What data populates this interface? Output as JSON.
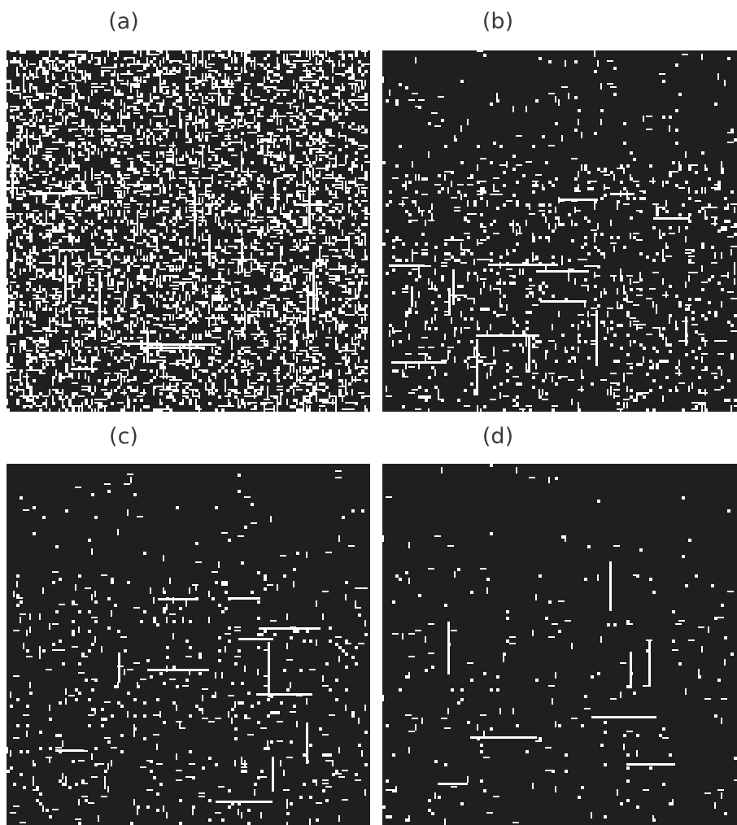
{
  "figure": {
    "panels": [
      {
        "id": "a",
        "label": "(a)",
        "content": "dense-edge-noise",
        "density": 0.3
      },
      {
        "id": "b",
        "label": "(b)",
        "content": "edge-map-moderate",
        "density": 0.12
      },
      {
        "id": "c",
        "label": "(c)",
        "content": "edge-map-sparse",
        "density": 0.06
      },
      {
        "id": "d",
        "label": "(d)",
        "content": "edge-map-very-sparse",
        "density": 0.025
      }
    ]
  },
  "colors": {
    "background": "#1e1f21",
    "edge": "#ffffff",
    "page": "#ffffff",
    "label_text": "#3a3a3a"
  }
}
